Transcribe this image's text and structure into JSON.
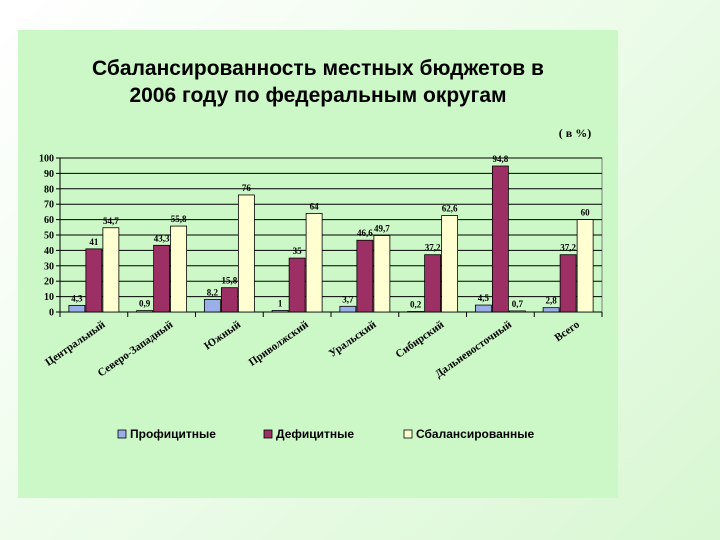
{
  "chart_data": {
    "type": "bar",
    "title_lines": [
      "Сбалансированность местных бюджетов в",
      "2006 году по федеральным округам"
    ],
    "unit": "( в %)",
    "ylim": [
      0,
      100
    ],
    "yticks": [
      0,
      10,
      20,
      30,
      40,
      50,
      60,
      70,
      80,
      90,
      100
    ],
    "grid": true,
    "legend_position": "bottom",
    "categories": [
      "Центральный",
      "Северо-Западный",
      "Южный",
      "Приволжский",
      "Уральский",
      "Сибирский",
      "Дальневосточный",
      "Всего"
    ],
    "series": [
      {
        "name": "Профицитные",
        "color": "#9aaee8",
        "values": [
          4.3,
          0.9,
          8.2,
          1,
          3.7,
          0.2,
          4.5,
          2.8
        ],
        "labels": [
          "4,3",
          "0,9",
          "8,2",
          "1",
          "3,7",
          "0,2",
          "4,5",
          "2,8"
        ]
      },
      {
        "name": "Дефицитные",
        "color": "#9c3064",
        "values": [
          41,
          43.3,
          15.8,
          35,
          46.6,
          37.2,
          94.8,
          37.2
        ],
        "labels": [
          "41",
          "43,3",
          "15,8",
          "35",
          "46,6",
          "37,2",
          "94,8",
          "37,2"
        ]
      },
      {
        "name": "Сбалансированные",
        "color": "#ffffd2",
        "values": [
          54.7,
          55.8,
          76,
          64,
          49.7,
          62.6,
          0.7,
          60
        ],
        "labels": [
          "54,7",
          "55,8",
          "76",
          "64",
          "49,7",
          "62,6",
          "0,7",
          "60"
        ]
      }
    ]
  }
}
